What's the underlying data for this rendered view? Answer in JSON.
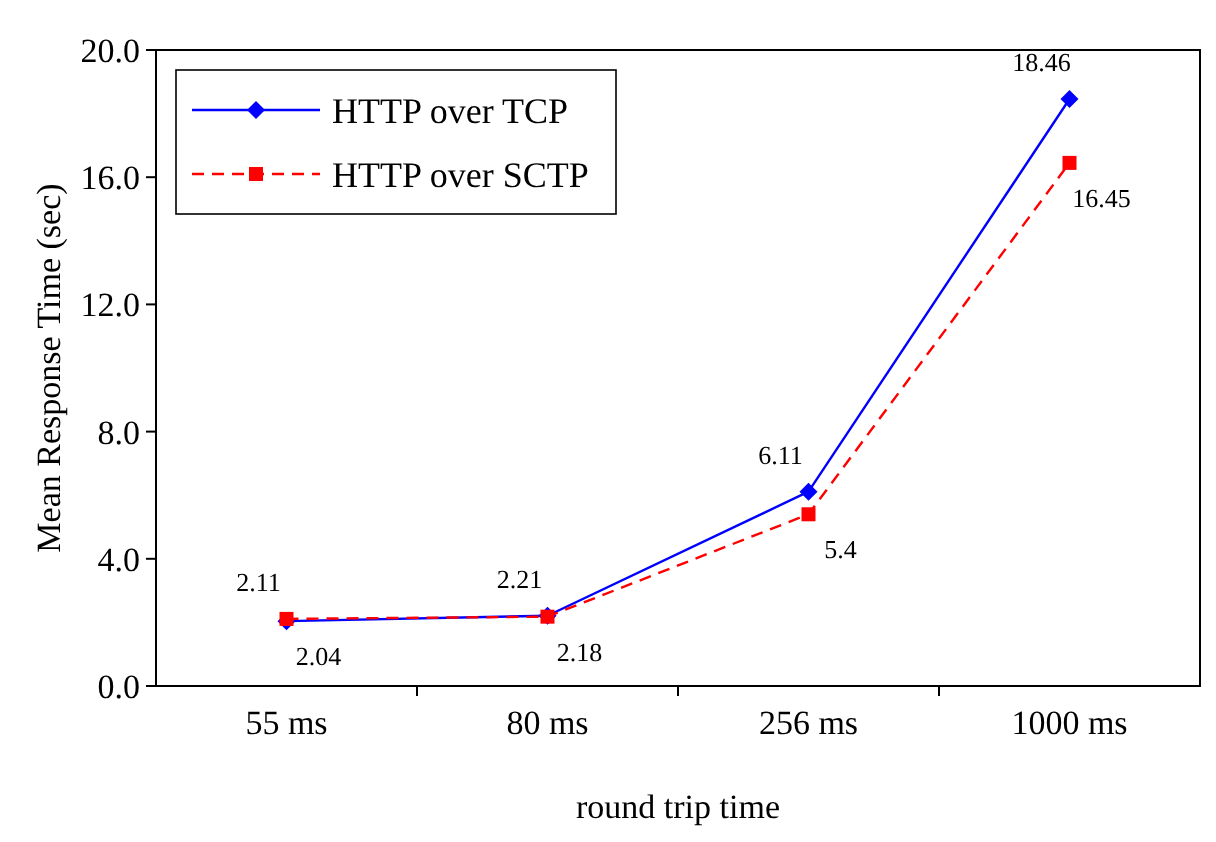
{
  "chart_data": {
    "type": "line",
    "xlabel": "round trip time",
    "ylabel": "Mean Response Time (sec)",
    "categories": [
      "55 ms",
      "80 ms",
      "256 ms",
      "1000 ms"
    ],
    "series": [
      {
        "name": "HTTP over TCP",
        "color": "#0000ff",
        "values": [
          2.04,
          2.21,
          6.11,
          18.46
        ],
        "marker": "diamond",
        "line_style": "solid"
      },
      {
        "name": "HTTP over SCTP",
        "color": "#ff0000",
        "values": [
          2.11,
          2.18,
          5.4,
          16.45
        ],
        "marker": "square",
        "line_style": "dashed"
      }
    ],
    "ylim": [
      0,
      20
    ],
    "yticks": [
      {
        "value": 0,
        "label": "0.0"
      },
      {
        "value": 4,
        "label": "4.0"
      },
      {
        "value": 8,
        "label": "8.0"
      },
      {
        "value": 12,
        "label": "12.0"
      },
      {
        "value": 16,
        "label": "16.0"
      },
      {
        "value": 20,
        "label": "20.0"
      }
    ],
    "grid": false,
    "legend": "top left",
    "data_labels": true
  }
}
